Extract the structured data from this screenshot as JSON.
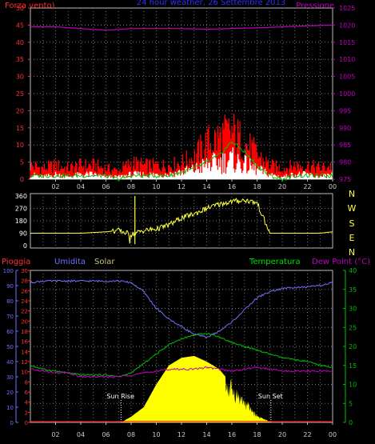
{
  "top_panel": {
    "left_title": "Forza vento)",
    "center_title": "24 hour weather, 26 Settembre 2013",
    "right_title": "Pressione",
    "left_ticks": [
      "0",
      "5",
      "10",
      "15",
      "20",
      "25",
      "30",
      "35",
      "40",
      "45",
      "50"
    ],
    "right_ticks": [
      "975",
      "980",
      "985",
      "990",
      "995",
      "1000",
      "1005",
      "1010",
      "1015",
      "1020",
      "1025"
    ]
  },
  "mid_panel": {
    "dir_ticks": [
      "0",
      "90",
      "180",
      "270",
      "360"
    ],
    "compass": [
      "N",
      "W",
      "S",
      "E",
      "N"
    ]
  },
  "bottom_panel": {
    "pioggia_label": "Pioggia",
    "umidita_label": "Umidita",
    "solar_label": "Solar",
    "temp_label": "Temperatura",
    "dew_label": "Dew Point (°C)",
    "rain_ticks": [
      "0",
      "2",
      "4",
      "6",
      "8",
      "10",
      "12",
      "14",
      "16",
      "18",
      "20",
      "22",
      "24",
      "26",
      "28",
      "30"
    ],
    "hum_ticks": [
      "0",
      "10",
      "20",
      "30",
      "40",
      "50",
      "60",
      "70",
      "80",
      "90",
      "100"
    ],
    "temp_ticks": [
      "0",
      "5",
      "10",
      "15",
      "20",
      "25",
      "30",
      "35",
      "40"
    ],
    "sunrise_label": "Sun Rise",
    "sunset_label": "Sun Set"
  },
  "x_ticks": [
    "02",
    "04",
    "06",
    "08",
    "10",
    "12",
    "14",
    "16",
    "18",
    "20",
    "22",
    "00"
  ],
  "colors": {
    "gust": "#ff0000",
    "wind": "#ffffff",
    "wind_avg": "#00c000",
    "pressure": "#c000c0",
    "direction": "#ffff40",
    "humidity": "#7070ff",
    "temperature": "#00c000",
    "dewpoint": "#c000c0",
    "solar": "#ffff00",
    "rain": "#ff0000",
    "axis_left_top": "#ff3030",
    "axis_right_top": "#c000c0",
    "axis_humidity": "#7070ff",
    "axis_temp": "#00c000"
  },
  "chart_data": [
    {
      "type": "area",
      "title": "24 hour weather, 26 Settembre 2013",
      "x_unit": "hour",
      "x_range": [
        0,
        24
      ],
      "left_axis": {
        "label": "Forza vento)",
        "range": [
          0,
          50
        ]
      },
      "right_axis": {
        "label": "Pressione",
        "range": [
          975,
          1025
        ]
      },
      "series": [
        {
          "name": "gust",
          "axis": "left",
          "x": [
            0,
            1,
            2,
            3,
            4,
            5,
            6,
            7,
            8,
            9,
            10,
            11,
            12,
            13,
            14,
            15,
            16,
            17,
            18,
            19,
            20,
            21,
            22,
            23,
            24
          ],
          "y": [
            5,
            4,
            5,
            4,
            5,
            5,
            4,
            3,
            6,
            5,
            5,
            5,
            6,
            8,
            13,
            15,
            17,
            13,
            9,
            5,
            4,
            5,
            5,
            4,
            5
          ]
        },
        {
          "name": "wind",
          "axis": "left",
          "x": [
            0,
            1,
            2,
            3,
            4,
            5,
            6,
            7,
            8,
            9,
            10,
            11,
            12,
            13,
            14,
            15,
            16,
            17,
            18,
            19,
            20,
            21,
            22,
            23,
            24
          ],
          "y": [
            2,
            1,
            2,
            1,
            2,
            2,
            1,
            1,
            2,
            2,
            2,
            2,
            3,
            4,
            6,
            7,
            8,
            6,
            4,
            2,
            1,
            2,
            2,
            1,
            2
          ]
        },
        {
          "name": "wind_avg",
          "axis": "left",
          "x": [
            0,
            1,
            2,
            3,
            4,
            5,
            6,
            7,
            8,
            9,
            10,
            11,
            12,
            13,
            14,
            15,
            16,
            17,
            18,
            19,
            20,
            21,
            22,
            23,
            24
          ],
          "y": [
            1,
            1,
            1,
            1,
            1,
            1,
            1,
            0,
            1,
            1,
            1,
            1,
            2,
            3,
            5,
            7,
            11,
            8,
            4,
            1,
            0,
            1,
            1,
            1,
            1
          ]
        },
        {
          "name": "Pressione",
          "axis": "right",
          "x": [
            0,
            2,
            4,
            6,
            8,
            10,
            12,
            14,
            16,
            18,
            20,
            22,
            24
          ],
          "y": [
            1019.5,
            1019.5,
            1019,
            1018.5,
            1019,
            1019,
            1019,
            1018.8,
            1019,
            1019.2,
            1019.5,
            1019.8,
            1020
          ]
        }
      ]
    },
    {
      "type": "line",
      "y_unit": "degrees",
      "y_range": [
        0,
        360
      ],
      "series": [
        {
          "name": "direction",
          "x": [
            0,
            1,
            2,
            3,
            4,
            5,
            6,
            7,
            8,
            9,
            10,
            11,
            12,
            13,
            14,
            15,
            16,
            17,
            18,
            19,
            20,
            21,
            22,
            23,
            24
          ],
          "y": [
            90,
            90,
            90,
            90,
            90,
            95,
            100,
            110,
            80,
            110,
            120,
            150,
            200,
            230,
            270,
            300,
            320,
            330,
            310,
            90,
            90,
            90,
            90,
            90,
            100
          ]
        }
      ]
    },
    {
      "type": "area",
      "left_axes": [
        {
          "label": "Pioggia",
          "range": [
            0,
            30
          ]
        },
        {
          "label": "Umidita",
          "range": [
            0,
            100
          ]
        }
      ],
      "right_axis": {
        "label": "Temperatura / Dew Point (°C)",
        "range": [
          0,
          40
        ]
      },
      "annotations": [
        {
          "text": "Sun Rise",
          "x": 7.2
        },
        {
          "text": "Sun Set",
          "x": 19.1
        }
      ],
      "series": [
        {
          "name": "Umidita",
          "axis": "humidity",
          "x": [
            0,
            1,
            2,
            3,
            4,
            5,
            6,
            7,
            8,
            9,
            10,
            11,
            12,
            13,
            14,
            15,
            16,
            17,
            18,
            19,
            20,
            21,
            22,
            23,
            24
          ],
          "y": [
            92,
            93,
            93,
            93,
            93,
            93,
            93,
            93,
            92,
            86,
            75,
            68,
            63,
            58,
            56,
            60,
            66,
            74,
            82,
            86,
            88,
            89,
            89,
            90,
            92
          ]
        },
        {
          "name": "Temperatura",
          "axis": "temp",
          "x": [
            0,
            1,
            2,
            3,
            4,
            5,
            6,
            7,
            8,
            9,
            10,
            11,
            12,
            13,
            14,
            15,
            16,
            17,
            18,
            19,
            20,
            21,
            22,
            23,
            24
          ],
          "y": [
            15,
            14,
            13.5,
            13,
            12.5,
            12.5,
            12.5,
            12,
            13,
            15.5,
            18,
            20.5,
            22,
            23,
            23.5,
            22.5,
            21,
            20,
            19,
            18,
            17,
            16.5,
            16,
            15,
            14.5
          ]
        },
        {
          "name": "Dew Point",
          "axis": "temp",
          "x": [
            0,
            1,
            2,
            3,
            4,
            5,
            6,
            7,
            8,
            9,
            10,
            11,
            12,
            13,
            14,
            15,
            16,
            17,
            18,
            19,
            20,
            21,
            22,
            23,
            24
          ],
          "y": [
            14,
            13.5,
            13,
            13,
            12,
            12,
            12,
            12,
            12.5,
            13,
            13.5,
            14,
            14,
            14,
            14.5,
            14,
            13.5,
            14,
            14.5,
            14,
            13.5,
            13.5,
            13.5,
            13.5,
            13.5
          ]
        },
        {
          "name": "Solar",
          "axis": "temp",
          "x": [
            7.2,
            8,
            9,
            10,
            11,
            12,
            13,
            14,
            15,
            16,
            17,
            18,
            19.1
          ],
          "y": [
            0,
            1.5,
            4,
            10,
            15,
            17,
            17.5,
            16,
            14,
            10,
            6,
            2,
            0
          ]
        },
        {
          "name": "Pioggia",
          "axis": "rain",
          "x": [
            0,
            24
          ],
          "y": [
            0.2,
            0.2
          ]
        }
      ]
    }
  ]
}
